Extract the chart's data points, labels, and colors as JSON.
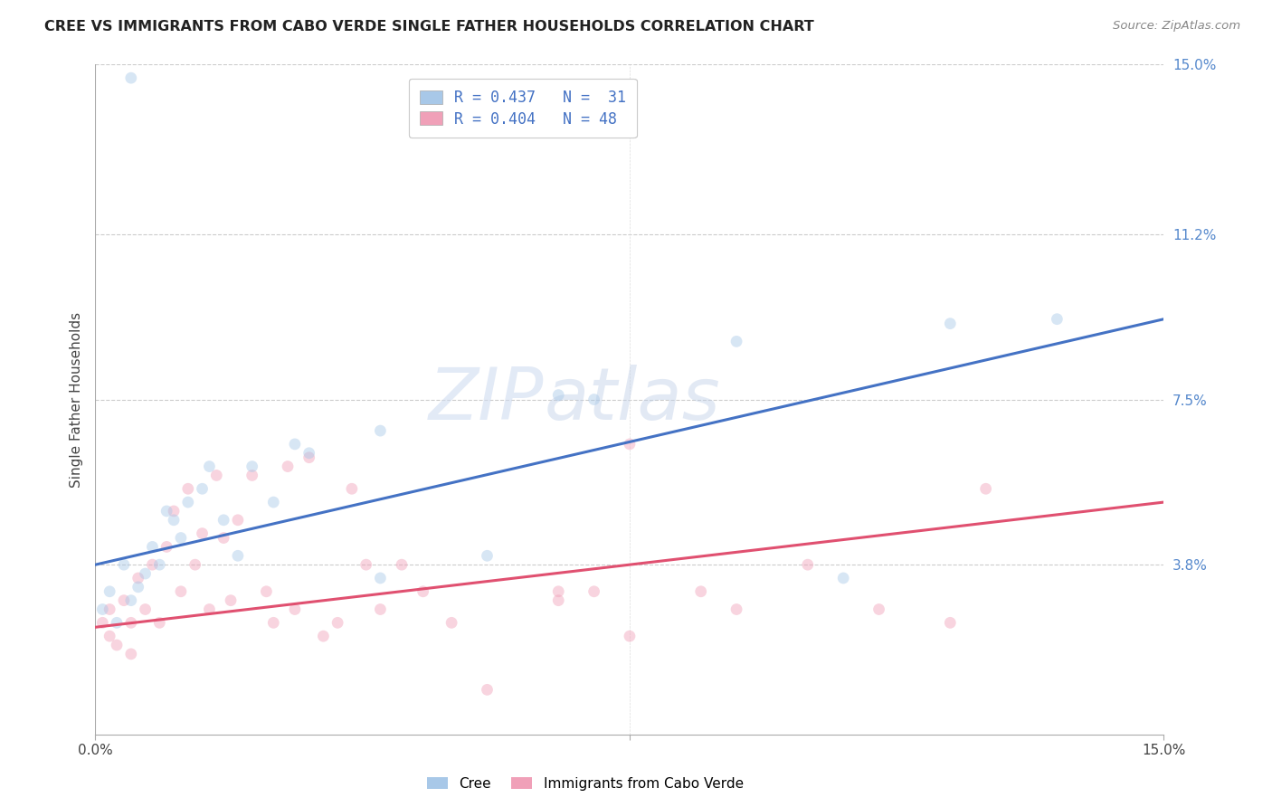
{
  "title": "CREE VS IMMIGRANTS FROM CABO VERDE SINGLE FATHER HOUSEHOLDS CORRELATION CHART",
  "source": "Source: ZipAtlas.com",
  "ylabel": "Single Father Households",
  "xlim": [
    0.0,
    0.15
  ],
  "ylim": [
    0.0,
    0.15
  ],
  "y_tick_labels_right": [
    "15.0%",
    "11.2%",
    "7.5%",
    "3.8%"
  ],
  "y_tick_positions_right": [
    0.15,
    0.112,
    0.075,
    0.038
  ],
  "legend_blue_text": "R = 0.437   N =  31",
  "legend_pink_text": "R = 0.404   N = 48",
  "cree_color": "#A8C8E8",
  "cabo_verde_color": "#F0A0B8",
  "line_blue_color": "#4472C4",
  "line_pink_color": "#E05070",
  "cree_scatter_x": [
    0.001,
    0.002,
    0.003,
    0.004,
    0.005,
    0.006,
    0.007,
    0.008,
    0.009,
    0.01,
    0.011,
    0.012,
    0.013,
    0.015,
    0.016,
    0.018,
    0.02,
    0.022,
    0.025,
    0.028,
    0.03,
    0.04,
    0.055,
    0.065,
    0.07,
    0.09,
    0.105,
    0.12,
    0.135,
    0.04,
    0.005
  ],
  "cree_scatter_y": [
    0.028,
    0.032,
    0.025,
    0.038,
    0.03,
    0.033,
    0.036,
    0.042,
    0.038,
    0.05,
    0.048,
    0.044,
    0.052,
    0.055,
    0.06,
    0.048,
    0.04,
    0.06,
    0.052,
    0.065,
    0.063,
    0.068,
    0.04,
    0.076,
    0.075,
    0.088,
    0.035,
    0.092,
    0.093,
    0.035,
    0.147
  ],
  "cabo_scatter_x": [
    0.001,
    0.002,
    0.002,
    0.003,
    0.004,
    0.005,
    0.005,
    0.006,
    0.007,
    0.008,
    0.009,
    0.01,
    0.011,
    0.012,
    0.013,
    0.014,
    0.015,
    0.016,
    0.017,
    0.018,
    0.019,
    0.02,
    0.022,
    0.024,
    0.025,
    0.027,
    0.028,
    0.03,
    0.032,
    0.034,
    0.036,
    0.038,
    0.04,
    0.043,
    0.046,
    0.05,
    0.055,
    0.065,
    0.07,
    0.075,
    0.085,
    0.09,
    0.1,
    0.11,
    0.12,
    0.125,
    0.075,
    0.065
  ],
  "cabo_scatter_y": [
    0.025,
    0.022,
    0.028,
    0.02,
    0.03,
    0.018,
    0.025,
    0.035,
    0.028,
    0.038,
    0.025,
    0.042,
    0.05,
    0.032,
    0.055,
    0.038,
    0.045,
    0.028,
    0.058,
    0.044,
    0.03,
    0.048,
    0.058,
    0.032,
    0.025,
    0.06,
    0.028,
    0.062,
    0.022,
    0.025,
    0.055,
    0.038,
    0.028,
    0.038,
    0.032,
    0.025,
    0.01,
    0.03,
    0.032,
    0.022,
    0.032,
    0.028,
    0.038,
    0.028,
    0.025,
    0.055,
    0.065,
    0.032
  ],
  "blue_line_x": [
    0.0,
    0.15
  ],
  "blue_line_y": [
    0.038,
    0.093
  ],
  "pink_line_x": [
    0.0,
    0.15
  ],
  "pink_line_y": [
    0.024,
    0.052
  ],
  "watermark_zip": "ZIP",
  "watermark_atlas": "atlas",
  "background_color": "#FFFFFF",
  "grid_color": "#CCCCCC",
  "marker_size": 85,
  "marker_alpha": 0.45
}
